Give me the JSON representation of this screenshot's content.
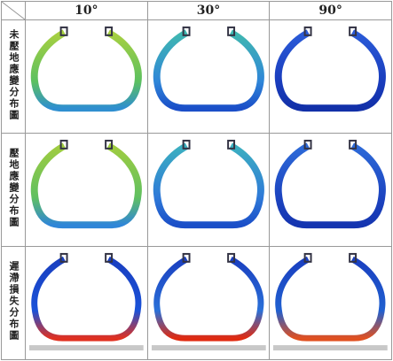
{
  "table": {
    "header": [
      "10°",
      "30°",
      "90°"
    ],
    "rows": [
      {
        "label": "未壓地應變分布圖"
      },
      {
        "label": "壓地應變分布圖"
      },
      {
        "label": "遲滯損失分布圖"
      }
    ]
  }
}
